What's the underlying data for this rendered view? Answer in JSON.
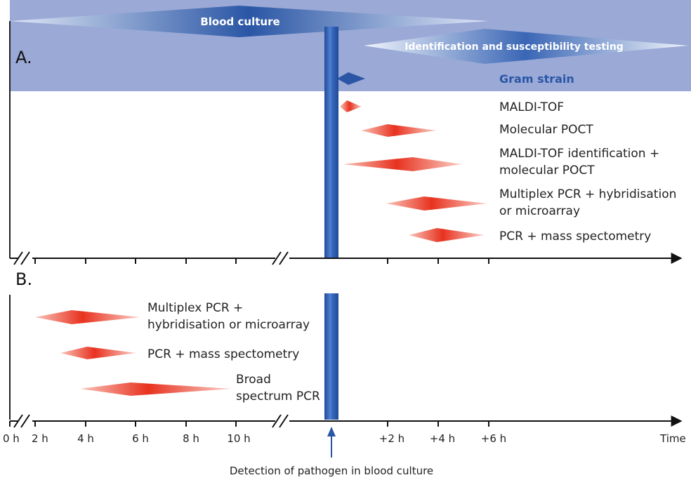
{
  "panels": {
    "a": "A.",
    "b": "B."
  },
  "header": {
    "blood_culture": "Blood culture",
    "id_susceptibility": "Identification and susceptibility testing",
    "gram_strain": "Gram strain"
  },
  "panel_a_methods": [
    {
      "line1": "MALDI-TOF",
      "line2": ""
    },
    {
      "line1": "Molecular POCT",
      "line2": ""
    },
    {
      "line1": "MALDI-TOF identification +",
      "line2": "molecular POCT"
    },
    {
      "line1": "Multiplex PCR + hybridisation",
      "line2": "or microarray"
    },
    {
      "line1": "PCR + mass spectometry",
      "line2": ""
    }
  ],
  "panel_b_methods": [
    {
      "line1": "Multiplex PCR +",
      "line2": "hybridisation or microarray"
    },
    {
      "line1": "PCR + mass spectometry",
      "line2": ""
    },
    {
      "line1": "Broad",
      "line2": "spectrum PCR"
    }
  ],
  "axis": {
    "ticks": [
      "0 h",
      "2 h",
      "4 h",
      "6 h",
      "8 h",
      "10 h",
      "+2 h",
      "+4 h",
      "+6 h"
    ],
    "time_label": "Time",
    "detection_label": "Detection of pathogen in blood culture"
  },
  "colors": {
    "band": "#9aa9d6",
    "blue_dark": "#2a56a5",
    "red": "#e8321f",
    "red_light": "#f7b2a6"
  }
}
